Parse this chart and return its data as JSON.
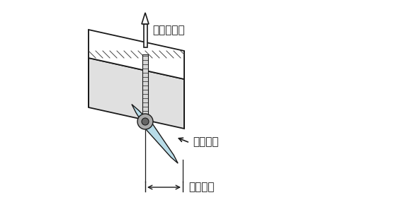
{
  "bg_color": "#ffffff",
  "outline": "#1a1a1a",
  "light_blue": "#b8dce8",
  "hatch_color": "#444444",
  "top_face_color": "#e0e0e0",
  "right_face_color": "#d8d8d8",
  "left_face_color": "#f0f0f0",
  "stud_color": "#cccccc",
  "label_radius": "回し半径",
  "label_load": "許容荷重",
  "label_clamp": "許容締付力",
  "font_size": 11
}
